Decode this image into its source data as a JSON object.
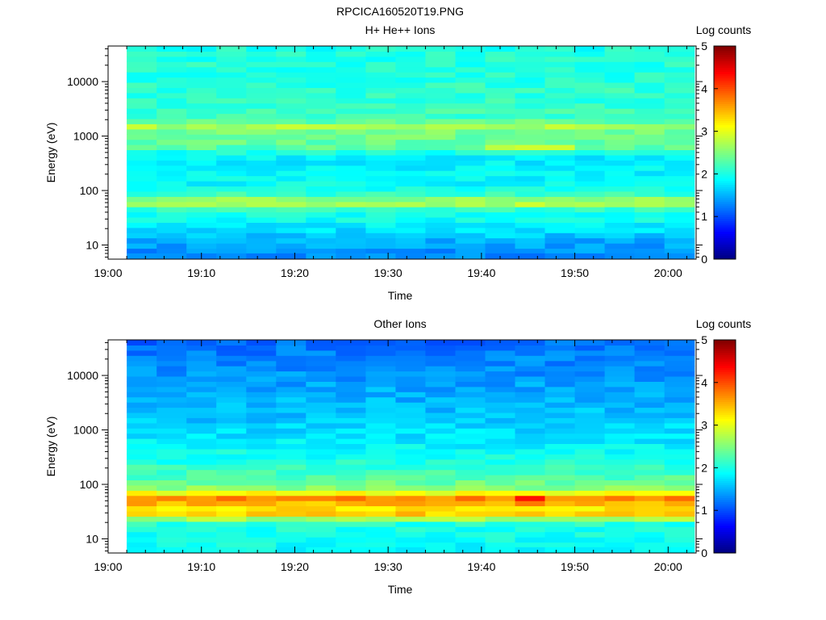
{
  "figure_title": "RPCICA160520T19.PNG",
  "colors": {
    "colormap": [
      "#00007f",
      "#0000ff",
      "#007fff",
      "#00ffff",
      "#7fff7f",
      "#ffff00",
      "#ff7f00",
      "#ff0000",
      "#7f0000"
    ]
  },
  "chart_data": [
    {
      "type": "heatmap",
      "title": "H+ He++ Ions",
      "xlabel": "Time",
      "ylabel": "Energy (eV)",
      "x_ticks": [
        "19:00",
        "19:10",
        "19:20",
        "19:30",
        "19:40",
        "19:50",
        "20:00"
      ],
      "x_range_minutes": [
        0,
        63
      ],
      "data_start_minutes": 2,
      "y_scale": "log",
      "ylim": [
        5.5,
        45000
      ],
      "y_tick_labels": [
        "10",
        "100",
        "1000",
        "10000"
      ],
      "colorbar": {
        "label": "Log counts",
        "range": [
          0,
          5
        ],
        "tick_labels": [
          "0",
          "1",
          "2",
          "3",
          "4",
          "5"
        ]
      },
      "time_bins_start_minutes": [
        2,
        5.2,
        8.4,
        11.6,
        14.8,
        18,
        21.2,
        24.4,
        27.6,
        30.8,
        34,
        37.2,
        40.4,
        43.6,
        46.8,
        50,
        53.2,
        56.4,
        59.6
      ],
      "energy_log10_profile": [
        [
          0.8,
          1.3
        ],
        [
          0.95,
          1.4
        ],
        [
          1.05,
          1.45
        ],
        [
          1.15,
          1.6
        ],
        [
          1.3,
          1.75
        ],
        [
          1.45,
          1.9
        ],
        [
          1.6,
          1.95
        ],
        [
          1.7,
          2.3
        ],
        [
          1.78,
          3.0
        ],
        [
          1.9,
          2.2
        ],
        [
          2.1,
          1.9
        ],
        [
          2.3,
          1.85
        ],
        [
          2.5,
          1.8
        ],
        [
          2.65,
          1.85
        ],
        [
          2.8,
          2.3
        ],
        [
          2.95,
          2.4
        ],
        [
          3.1,
          2.45
        ],
        [
          3.2,
          2.8
        ],
        [
          3.3,
          2.2
        ],
        [
          3.5,
          2.15
        ],
        [
          3.7,
          2.1
        ],
        [
          3.9,
          2.1
        ],
        [
          4.1,
          2.05
        ],
        [
          4.3,
          2.05
        ],
        [
          4.55,
          2.0
        ],
        [
          4.66,
          2.0
        ]
      ],
      "features": [
        {
          "energy_eV": 65,
          "log_counts": 3.0
        },
        {
          "energy_eV": 1600,
          "log_counts": 2.8
        },
        {
          "energy_eV": 700,
          "log_counts": 2.5
        }
      ]
    },
    {
      "type": "heatmap",
      "title": "Other Ions",
      "xlabel": "Time",
      "ylabel": "Energy (eV)",
      "x_ticks": [
        "19:00",
        "19:10",
        "19:20",
        "19:30",
        "19:40",
        "19:50",
        "20:00"
      ],
      "x_range_minutes": [
        0,
        63
      ],
      "data_start_minutes": 2,
      "y_scale": "log",
      "ylim": [
        5.5,
        45000
      ],
      "y_tick_labels": [
        "10",
        "100",
        "1000",
        "10000"
      ],
      "colorbar": {
        "label": "Log counts",
        "range": [
          0,
          5
        ],
        "tick_labels": [
          "0",
          "1",
          "2",
          "3",
          "4",
          "5"
        ]
      },
      "time_bins_start_minutes": [
        2,
        5.2,
        8.4,
        11.6,
        14.8,
        18,
        21.2,
        24.4,
        27.6,
        30.8,
        34,
        37.2,
        40.4,
        43.6,
        46.8,
        50,
        53.2,
        56.4,
        59.6
      ],
      "energy_log10_profile": [
        [
          0.8,
          1.9
        ],
        [
          1.0,
          1.95
        ],
        [
          1.15,
          2.0
        ],
        [
          1.3,
          2.05
        ],
        [
          1.45,
          3.4
        ],
        [
          1.55,
          3.2
        ],
        [
          1.62,
          3.6
        ],
        [
          1.7,
          3.3
        ],
        [
          1.78,
          4.0
        ],
        [
          1.85,
          3.0
        ],
        [
          1.95,
          2.5
        ],
        [
          2.1,
          2.3
        ],
        [
          2.25,
          2.2
        ],
        [
          2.4,
          2.05
        ],
        [
          2.55,
          1.95
        ],
        [
          2.7,
          1.85
        ],
        [
          2.85,
          1.75
        ],
        [
          3.0,
          1.7
        ],
        [
          3.2,
          1.6
        ],
        [
          3.4,
          1.55
        ],
        [
          3.6,
          1.5
        ],
        [
          3.8,
          1.45
        ],
        [
          4.0,
          1.35
        ],
        [
          4.2,
          1.3
        ],
        [
          4.4,
          1.25
        ],
        [
          4.6,
          1.15
        ],
        [
          4.66,
          1.1
        ]
      ],
      "features": [
        {
          "energy_eV": 60,
          "log_counts": 4.0
        },
        {
          "energy_eV": 40,
          "log_counts": 3.6
        }
      ]
    }
  ]
}
